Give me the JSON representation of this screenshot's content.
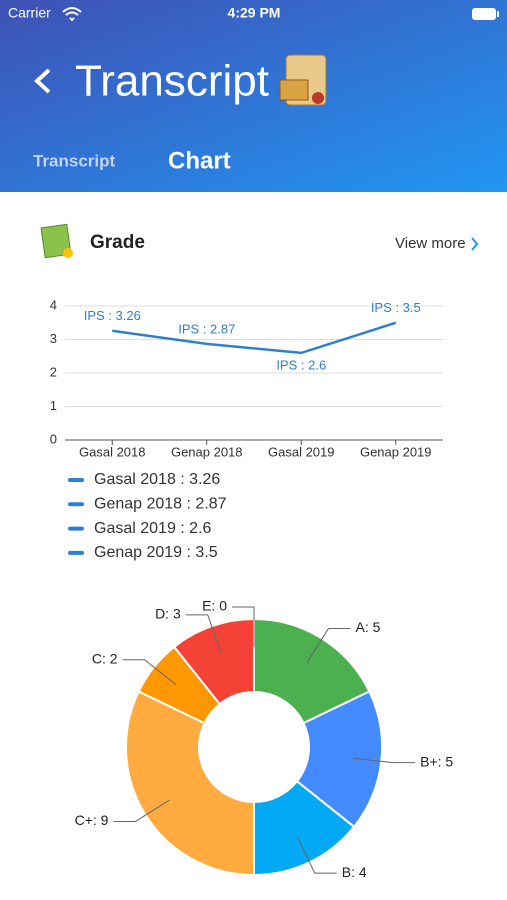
{
  "status_bar": {
    "carrier": "Carrier",
    "time": "4:29 PM"
  },
  "header": {
    "title": "Transcript"
  },
  "tabs": [
    "Transcript",
    "Chart"
  ],
  "section": {
    "title": "Grade",
    "link": "View more"
  },
  "chart_data": [
    {
      "type": "line",
      "categories": [
        "Gasal 2018",
        "Genap 2018",
        "Gasal 2019",
        "Genap 2019"
      ],
      "series": [
        {
          "color": "#2f7fcf",
          "values": [
            3.26,
            2.87,
            2.6,
            3.5
          ],
          "value_labels": [
            "IPS : 3.26",
            "IPS : 2.87",
            "IPS : 2.6",
            "IPS : 3.5"
          ]
        }
      ],
      "legend": [
        "Gasal 2018  : 3.26",
        "Genap 2018  : 2.87",
        "Gasal 2019  : 2.6",
        "Genap 2019  : 3.5"
      ],
      "ylim": [
        0,
        4
      ],
      "yticks": [
        0,
        1,
        2,
        3,
        4
      ],
      "grid": true
    },
    {
      "type": "pie",
      "categories": [
        "A",
        "B+",
        "B",
        "C+",
        "C",
        "D",
        "E"
      ],
      "values": [
        5,
        5,
        4,
        9,
        2,
        3,
        0
      ],
      "value_labels": [
        "A: 5",
        "B+: 5",
        "B: 4",
        "C+: 9",
        "C: 2",
        "D: 3",
        "E: 0"
      ],
      "colors": [
        "#4caf50",
        "#448aff",
        "#03a9f4",
        "#ffab40",
        "#ff9800",
        "#f44336",
        "#9e9e9e"
      ],
      "donut": true
    }
  ]
}
